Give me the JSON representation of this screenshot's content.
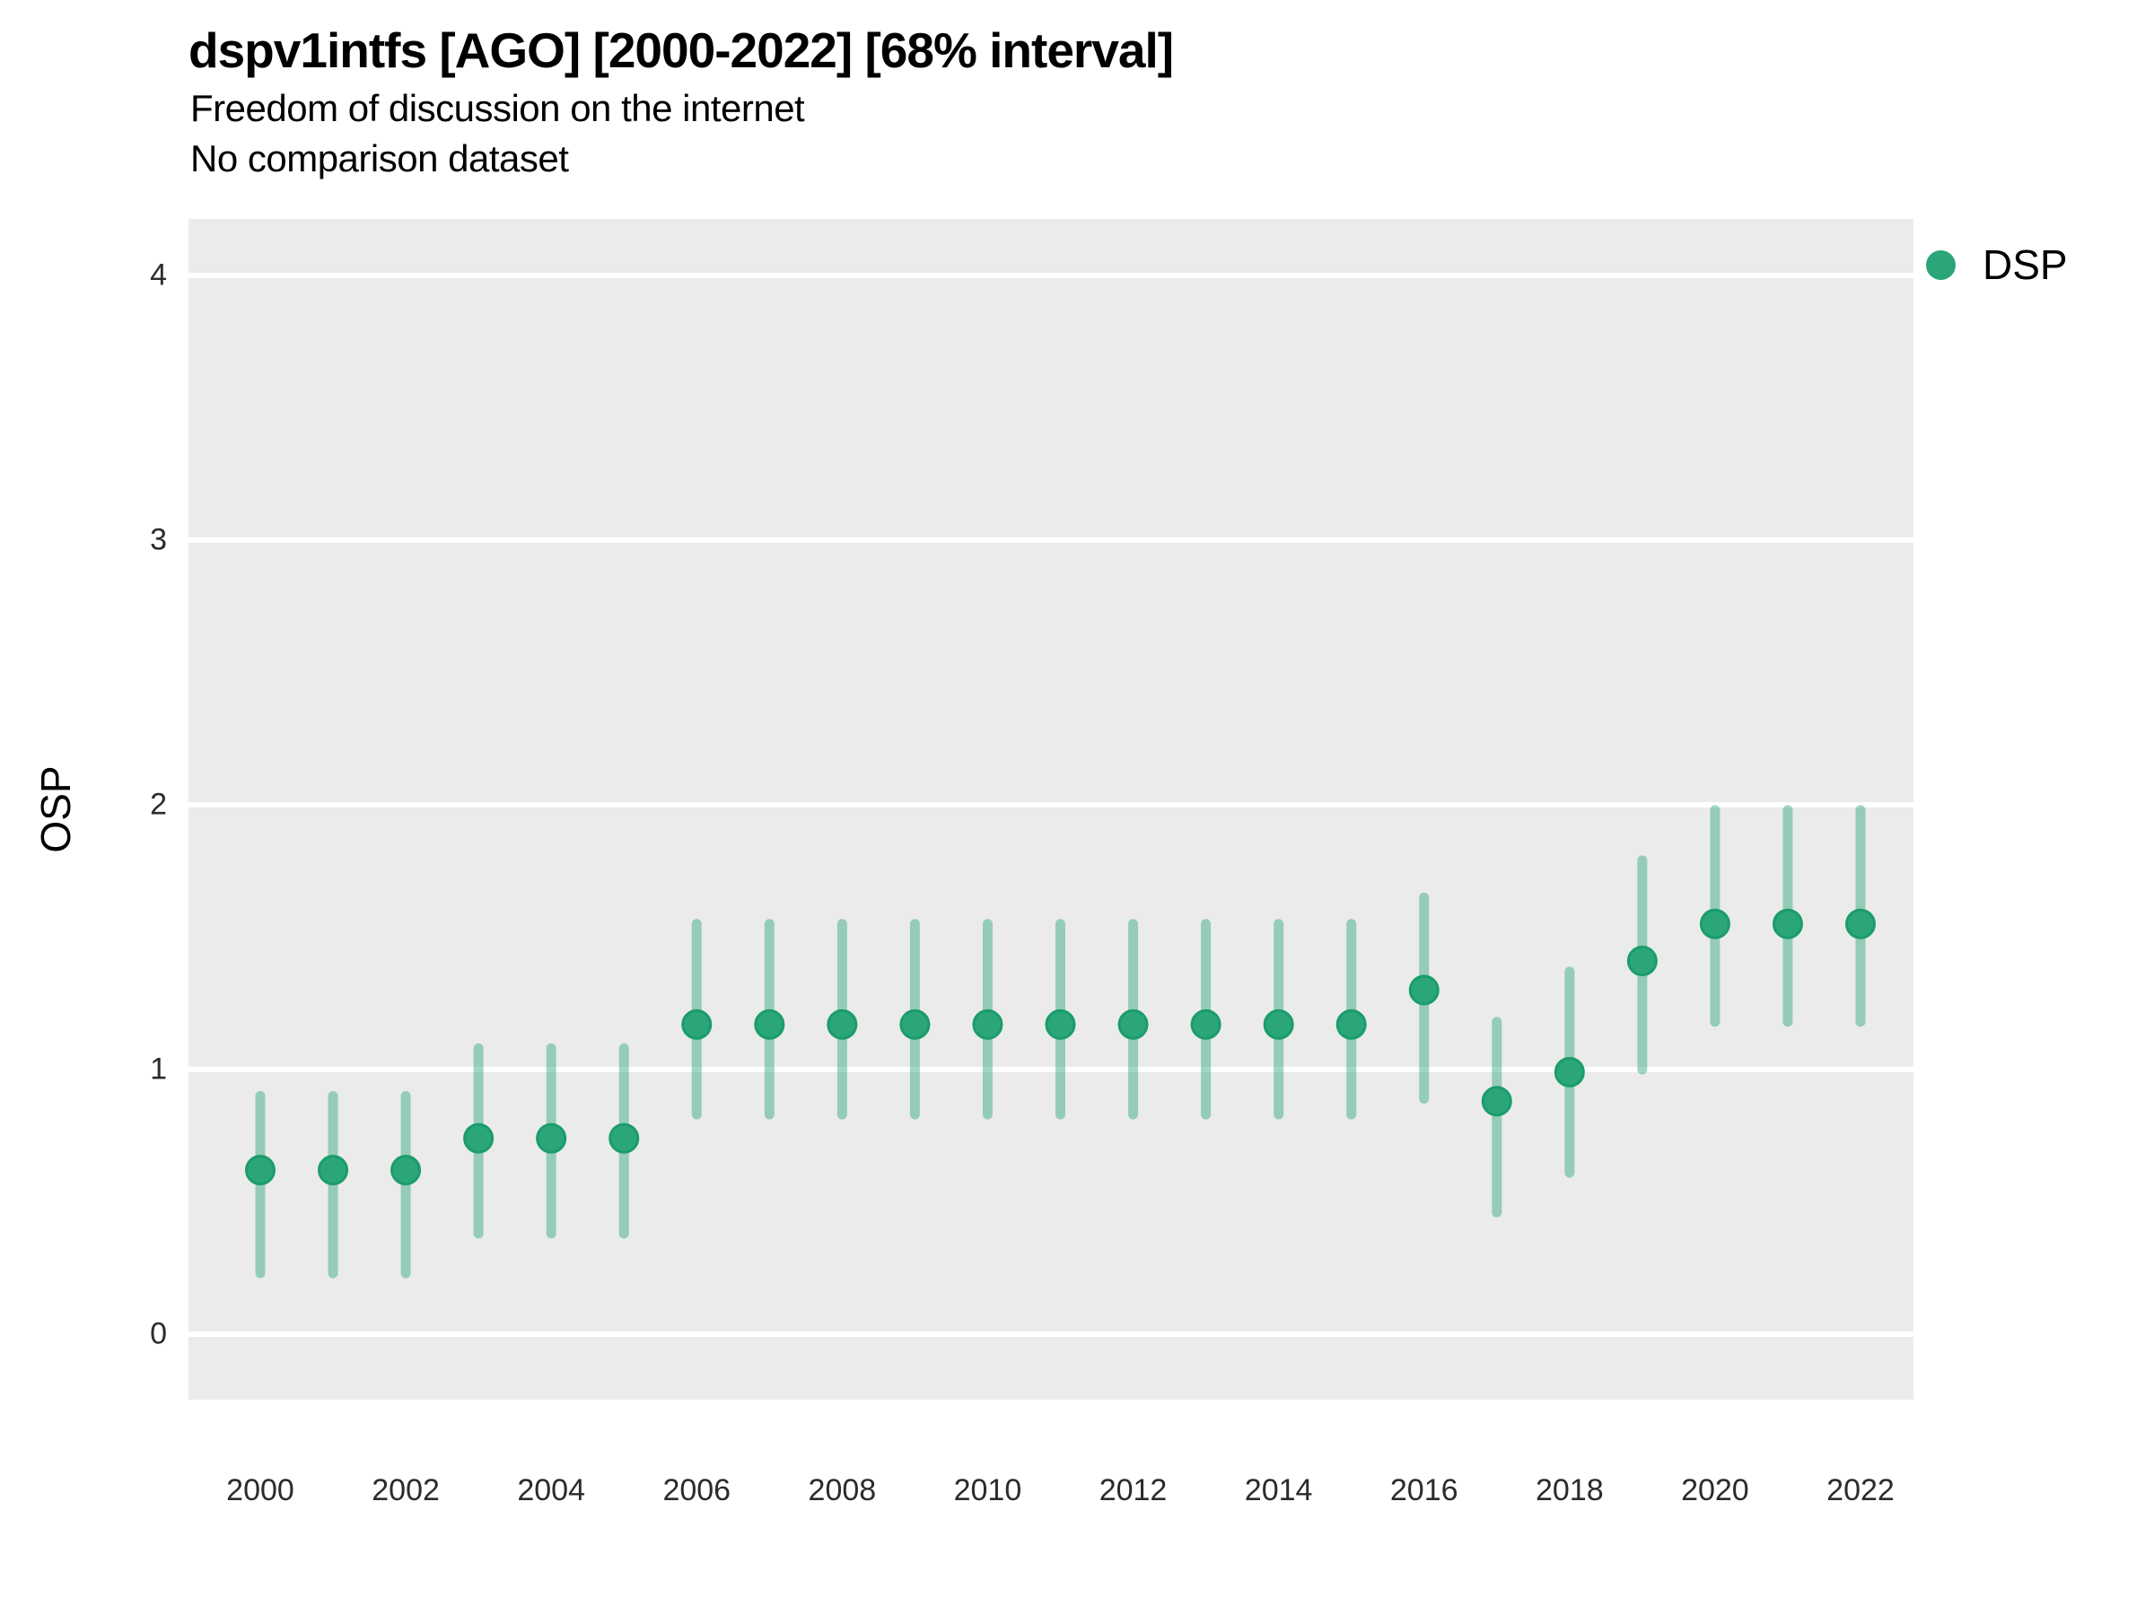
{
  "header": {
    "title": "dspv1intfs [AGO] [2000-2022] [68% interval]",
    "subtitle": "Freedom of discussion on the internet",
    "note": "No comparison dataset"
  },
  "legend": {
    "label": "DSP",
    "swatch_color": "#2AA678"
  },
  "y_axis": {
    "title": "OSP",
    "ticks": [
      "0",
      "1",
      "2",
      "3",
      "4"
    ]
  },
  "x_axis": {
    "ticks": [
      "2000",
      "2002",
      "2004",
      "2006",
      "2008",
      "2010",
      "2012",
      "2014",
      "2016",
      "2018",
      "2020",
      "2022"
    ]
  },
  "colors": {
    "panel_background": "#EBEBEB",
    "gridline": "#FFFFFF",
    "point_fill": "#2AA678",
    "point_stroke": "#1B9C6B",
    "interval_rgba": "rgba(42,166,120,0.45)",
    "interval_blended_hex": "#94CCB7",
    "text": "#000000"
  },
  "chart_data": {
    "type": "scatter",
    "subtype": "pointrange",
    "title": "dspv1intfs [AGO] [2000-2022] [68% interval]",
    "subtitle": "Freedom of discussion on the internet",
    "note": "No comparison dataset",
    "xlabel": "",
    "ylabel": "OSP",
    "interval": "68%",
    "legend_position": "right-top",
    "grid": "major-horizontal-only",
    "xlim": [
      1999.0,
      2022.7
    ],
    "ylim": [
      -0.25,
      4.22
    ],
    "y_ticks": [
      0,
      1,
      2,
      3,
      4
    ],
    "x_ticks": [
      2000,
      2002,
      2004,
      2006,
      2008,
      2010,
      2012,
      2014,
      2016,
      2018,
      2020,
      2022
    ],
    "series": [
      {
        "name": "DSP",
        "x": [
          2000,
          2001,
          2002,
          2003,
          2004,
          2005,
          2006,
          2007,
          2008,
          2009,
          2010,
          2011,
          2012,
          2013,
          2014,
          2015,
          2016,
          2017,
          2018,
          2019,
          2020,
          2021,
          2022
        ],
        "y": [
          0.62,
          0.62,
          0.62,
          0.74,
          0.74,
          0.74,
          1.17,
          1.17,
          1.17,
          1.17,
          1.17,
          1.17,
          1.17,
          1.17,
          1.17,
          1.17,
          1.3,
          0.88,
          0.99,
          1.41,
          1.55,
          1.55,
          1.55
        ],
        "y_low": [
          0.23,
          0.23,
          0.23,
          0.38,
          0.38,
          0.38,
          0.83,
          0.83,
          0.83,
          0.83,
          0.83,
          0.83,
          0.83,
          0.83,
          0.83,
          0.83,
          0.89,
          0.46,
          0.61,
          1.0,
          1.18,
          1.18,
          1.18
        ],
        "y_high": [
          0.9,
          0.9,
          0.9,
          1.08,
          1.08,
          1.08,
          1.55,
          1.55,
          1.55,
          1.55,
          1.55,
          1.55,
          1.55,
          1.55,
          1.55,
          1.55,
          1.65,
          1.18,
          1.37,
          1.79,
          1.98,
          1.98,
          1.98
        ]
      }
    ]
  }
}
